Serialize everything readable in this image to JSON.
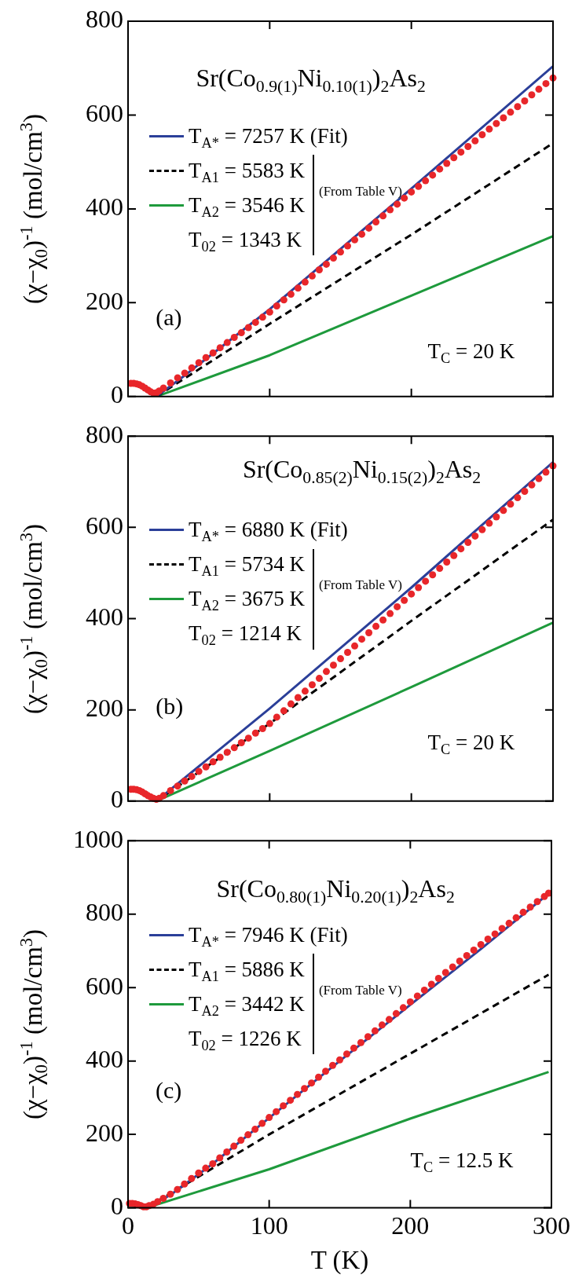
{
  "chart_data": [
    {
      "type": "scatter",
      "title": "Sr(Co$_{0.9(1)}$Ni$_{0.10(1)}$)$_{2}$As$_{2}$",
      "ylabel": "(χ−χ$_{0}$)$^{-1}$ (mol/cm$^{3}$)",
      "xlim": [
        0,
        300
      ],
      "xticks": [
        0,
        100,
        200,
        300
      ],
      "ylim": [
        0,
        800
      ],
      "yticks": [
        0,
        200,
        400,
        600,
        800
      ],
      "tick_labels": "y",
      "legend": "top left",
      "annotations": [
        "T$_{02}$ = 1343 K",
        "(From Table V)",
        "(a)",
        "T$_{C}$ = 20 K"
      ],
      "series": [
        {
          "color": "#e8262a",
          "marker": "circle",
          "x": [
            2,
            4,
            6,
            8,
            10,
            12,
            14,
            16,
            18,
            20,
            22,
            25,
            30,
            35,
            40,
            45,
            50,
            55,
            60,
            65,
            70,
            75,
            80,
            85,
            90,
            95,
            100,
            105,
            110,
            115,
            120,
            125,
            130,
            135,
            140,
            145,
            150,
            155,
            160,
            165,
            170,
            175,
            180,
            185,
            190,
            195,
            200,
            205,
            210,
            215,
            220,
            225,
            230,
            235,
            240,
            245,
            250,
            255,
            260,
            265,
            270,
            275,
            280,
            285,
            290,
            295,
            300
          ],
          "values": [
            28,
            28,
            27,
            25,
            22,
            18,
            14,
            10,
            7,
            8,
            12,
            18,
            29,
            40,
            50,
            61,
            72,
            83,
            93,
            104,
            115,
            126,
            136,
            147,
            158,
            169,
            180,
            193,
            206,
            218,
            231,
            244,
            257,
            270,
            282,
            295,
            308,
            321,
            334,
            346,
            359,
            372,
            385,
            398,
            410,
            423,
            436,
            448,
            460,
            472,
            485,
            497,
            509,
            521,
            533,
            545,
            558,
            570,
            582,
            594,
            606,
            618,
            630,
            643,
            655,
            667,
            679
          ]
        },
        {
          "type": "line",
          "name": "T$_{A*}$ = 7257 K  (Fit)",
          "color": "#2b3f99",
          "line_style": "solid",
          "x": [
            20,
            40,
            100,
            200,
            300
          ],
          "values": [
            0,
            45,
            186,
            443,
            704
          ]
        },
        {
          "type": "line",
          "name": "T$_{A1}$ = 5583 K",
          "color": "#000000",
          "line_style": "dashed",
          "x": [
            20,
            100,
            200,
            300
          ],
          "values": [
            0,
            155,
            345,
            540
          ]
        },
        {
          "type": "line",
          "name": "T$_{A2}$ = 3546 K",
          "color": "#1e9a3c",
          "line_style": "solid",
          "x": [
            20,
            100,
            200,
            300
          ],
          "values": [
            0,
            88,
            215,
            342
          ]
        }
      ]
    },
    {
      "type": "scatter",
      "title": "Sr(Co$_{0.85(2)}$Ni$_{0.15(2)}$)$_{2}$As$_{2}$",
      "ylabel": "(χ−χ$_{0}$)$^{-1}$ (mol/cm$^{3}$)",
      "xlim": [
        0,
        300
      ],
      "xticks": [
        0,
        100,
        200,
        300
      ],
      "ylim": [
        0,
        800
      ],
      "yticks": [
        0,
        200,
        400,
        600,
        800
      ],
      "tick_labels": "y",
      "legend": "top left",
      "annotations": [
        "T$_{02}$ = 1214 K",
        "(From Table V)",
        "(b)",
        "T$_{C}$ = 20 K"
      ],
      "series": [
        {
          "color": "#e8262a",
          "marker": "circle",
          "x": [
            2,
            4,
            6,
            8,
            10,
            12,
            14,
            16,
            18,
            20,
            22,
            25,
            30,
            35,
            40,
            45,
            50,
            55,
            60,
            65,
            70,
            75,
            80,
            85,
            90,
            95,
            100,
            105,
            110,
            115,
            120,
            125,
            130,
            135,
            140,
            145,
            150,
            155,
            160,
            165,
            170,
            175,
            180,
            185,
            190,
            195,
            200,
            205,
            210,
            215,
            220,
            225,
            230,
            235,
            240,
            245,
            250,
            255,
            260,
            265,
            270,
            275,
            280,
            285,
            290,
            295,
            300
          ],
          "values": [
            26,
            26,
            25,
            23,
            20,
            16,
            12,
            9,
            6,
            4,
            6,
            12,
            23,
            33,
            44,
            54,
            65,
            75,
            86,
            96,
            107,
            117,
            128,
            138,
            149,
            159,
            170,
            184,
            198,
            213,
            227,
            241,
            255,
            269,
            284,
            298,
            312,
            326,
            340,
            355,
            369,
            383,
            397,
            411,
            426,
            440,
            454,
            468,
            482,
            496,
            510,
            524,
            538,
            553,
            567,
            581,
            595,
            609,
            623,
            637,
            651,
            665,
            679,
            693,
            707,
            721,
            735
          ]
        },
        {
          "type": "line",
          "name": "T$_{A*}$ = 6880 K  (Fit)",
          "color": "#2b3f99",
          "line_style": "solid",
          "x": [
            20,
            100,
            200,
            300
          ],
          "values": [
            0,
            203,
            468,
            743
          ]
        },
        {
          "type": "line",
          "name": "T$_{A1}$ = 5734 K",
          "color": "#000000",
          "line_style": "dashed",
          "x": [
            20,
            100,
            200,
            300
          ],
          "values": [
            0,
            170,
            395,
            617
          ]
        },
        {
          "type": "line",
          "name": "T$_{A2}$ = 3675 K",
          "color": "#1e9a3c",
          "line_style": "solid",
          "x": [
            20,
            100,
            200,
            300
          ],
          "values": [
            0,
            110,
            250,
            391
          ]
        }
      ]
    },
    {
      "type": "scatter",
      "title": "Sr(Co$_{0.80(1)}$Ni$_{0.20(1)}$)$_{2}$As$_{2}$",
      "xlabel": "T (K)",
      "ylabel": "(χ−χ$_{0}$)$^{-1}$ (mol/cm$^{3}$)",
      "xlim": [
        0,
        300
      ],
      "xticks": [
        0,
        100,
        200,
        300
      ],
      "ylim": [
        0,
        1000
      ],
      "yticks": [
        0,
        200,
        400,
        600,
        800,
        1000
      ],
      "legend": "top left",
      "annotations": [
        "T$_{02}$ = 1226 K",
        "(From Table V)",
        "(c)",
        "T$_{C}$ = 12.5 K"
      ],
      "series": [
        {
          "color": "#e8262a",
          "marker": "circle",
          "x": [
            1,
            3,
            5,
            7,
            9,
            11,
            13,
            15,
            18,
            21,
            25,
            30,
            35,
            40,
            45,
            50,
            55,
            60,
            65,
            70,
            75,
            80,
            85,
            90,
            95,
            100,
            105,
            110,
            115,
            120,
            125,
            130,
            135,
            140,
            145,
            150,
            155,
            160,
            165,
            170,
            175,
            180,
            185,
            190,
            195,
            200,
            205,
            210,
            215,
            220,
            225,
            230,
            235,
            240,
            245,
            250,
            255,
            260,
            265,
            270,
            275,
            280,
            285,
            290,
            295,
            298
          ],
          "values": [
            12,
            12,
            11,
            9,
            6,
            3,
            3,
            6,
            10,
            17,
            26,
            37,
            50,
            65,
            80,
            95,
            108,
            120,
            136,
            152,
            168,
            184,
            199,
            214,
            230,
            246,
            262,
            278,
            293,
            309,
            325,
            340,
            356,
            372,
            388,
            403,
            419,
            435,
            450,
            466,
            482,
            498,
            513,
            529,
            545,
            561,
            577,
            593,
            609,
            625,
            641,
            656,
            672,
            687,
            702,
            717,
            732,
            746,
            761,
            775,
            790,
            805,
            819,
            834,
            848,
            857
          ]
        },
        {
          "type": "line",
          "name": "T$_{A*}$ = 7946 K  (Fit)",
          "color": "#2b3f99",
          "line_style": "solid",
          "x": [
            13,
            30,
            60,
            100,
            150,
            200,
            250,
            298
          ],
          "values": [
            0,
            35,
            120,
            245,
            400,
            553,
            705,
            856
          ]
        },
        {
          "type": "line",
          "name": "T$_{A1}$ = 5886 K",
          "color": "#000000",
          "line_style": "dashed",
          "x": [
            13,
            100,
            200,
            298
          ],
          "values": [
            0,
            200,
            420,
            635
          ]
        },
        {
          "type": "line",
          "name": "T$_{A2}$ = 3442 K",
          "color": "#1e9a3c",
          "line_style": "solid",
          "x": [
            13,
            100,
            200,
            298
          ],
          "values": [
            0,
            105,
            243,
            370
          ]
        }
      ]
    }
  ]
}
